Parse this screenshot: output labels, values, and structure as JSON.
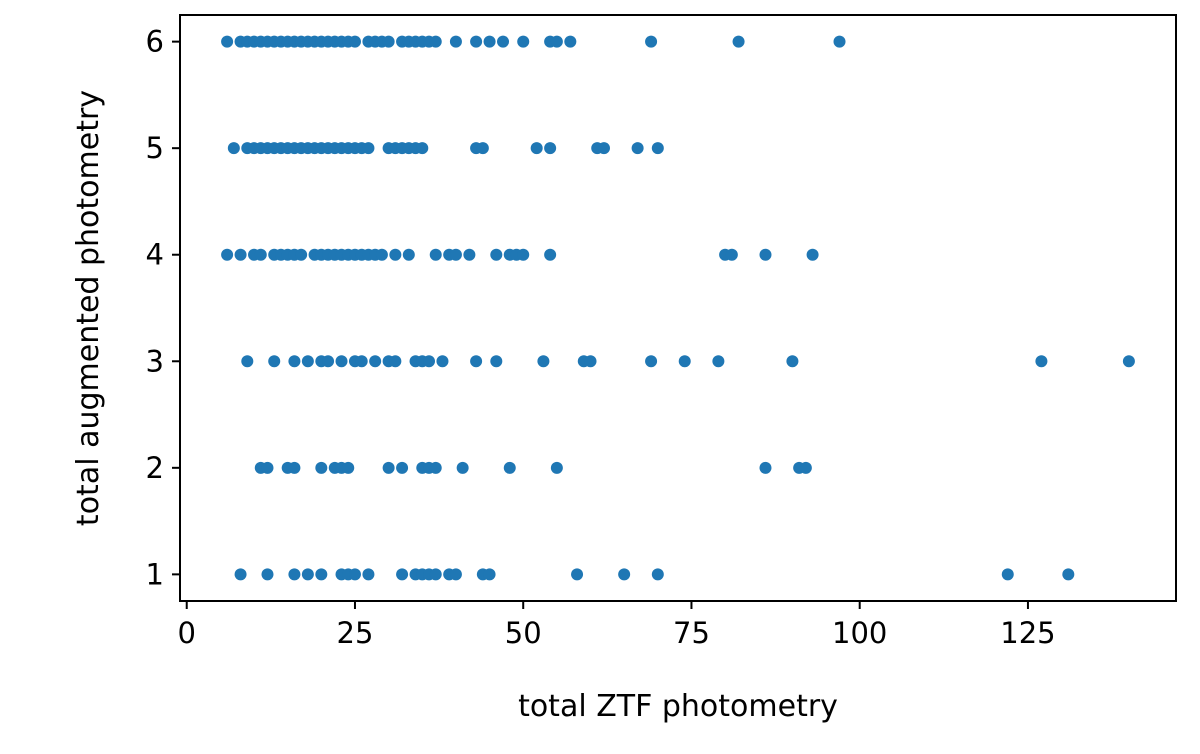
{
  "chart_data": {
    "type": "scatter",
    "title": "",
    "xlabel": "total ZTF photometry",
    "ylabel": "total augmented photometry",
    "xlim": [
      -1,
      147
    ],
    "ylim": [
      0.75,
      6.25
    ],
    "xticks": [
      0,
      25,
      50,
      75,
      100,
      125
    ],
    "yticks": [
      1,
      2,
      3,
      4,
      5,
      6
    ],
    "grid": false,
    "legend": "none",
    "series": [
      {
        "color": "#1f77b4",
        "points": [
          [
            6,
            6
          ],
          [
            8,
            6
          ],
          [
            9,
            6
          ],
          [
            10,
            6
          ],
          [
            11,
            6
          ],
          [
            12,
            6
          ],
          [
            13,
            6
          ],
          [
            14,
            6
          ],
          [
            15,
            6
          ],
          [
            16,
            6
          ],
          [
            17,
            6
          ],
          [
            18,
            6
          ],
          [
            19,
            6
          ],
          [
            20,
            6
          ],
          [
            21,
            6
          ],
          [
            22,
            6
          ],
          [
            23,
            6
          ],
          [
            24,
            6
          ],
          [
            25,
            6
          ],
          [
            27,
            6
          ],
          [
            28,
            6
          ],
          [
            29,
            6
          ],
          [
            30,
            6
          ],
          [
            32,
            6
          ],
          [
            33,
            6
          ],
          [
            34,
            6
          ],
          [
            35,
            6
          ],
          [
            36,
            6
          ],
          [
            37,
            6
          ],
          [
            40,
            6
          ],
          [
            43,
            6
          ],
          [
            45,
            6
          ],
          [
            47,
            6
          ],
          [
            50,
            6
          ],
          [
            54,
            6
          ],
          [
            55,
            6
          ],
          [
            57,
            6
          ],
          [
            69,
            6
          ],
          [
            82,
            6
          ],
          [
            97,
            6
          ],
          [
            7,
            5
          ],
          [
            9,
            5
          ],
          [
            10,
            5
          ],
          [
            11,
            5
          ],
          [
            12,
            5
          ],
          [
            13,
            5
          ],
          [
            14,
            5
          ],
          [
            15,
            5
          ],
          [
            16,
            5
          ],
          [
            17,
            5
          ],
          [
            18,
            5
          ],
          [
            19,
            5
          ],
          [
            20,
            5
          ],
          [
            21,
            5
          ],
          [
            22,
            5
          ],
          [
            23,
            5
          ],
          [
            24,
            5
          ],
          [
            25,
            5
          ],
          [
            26,
            5
          ],
          [
            27,
            5
          ],
          [
            30,
            5
          ],
          [
            31,
            5
          ],
          [
            32,
            5
          ],
          [
            33,
            5
          ],
          [
            34,
            5
          ],
          [
            35,
            5
          ],
          [
            43,
            5
          ],
          [
            44,
            5
          ],
          [
            52,
            5
          ],
          [
            54,
            5
          ],
          [
            61,
            5
          ],
          [
            62,
            5
          ],
          [
            67,
            5
          ],
          [
            70,
            5
          ],
          [
            6,
            4
          ],
          [
            8,
            4
          ],
          [
            10,
            4
          ],
          [
            11,
            4
          ],
          [
            13,
            4
          ],
          [
            14,
            4
          ],
          [
            15,
            4
          ],
          [
            16,
            4
          ],
          [
            17,
            4
          ],
          [
            19,
            4
          ],
          [
            20,
            4
          ],
          [
            21,
            4
          ],
          [
            22,
            4
          ],
          [
            23,
            4
          ],
          [
            24,
            4
          ],
          [
            25,
            4
          ],
          [
            26,
            4
          ],
          [
            27,
            4
          ],
          [
            28,
            4
          ],
          [
            29,
            4
          ],
          [
            31,
            4
          ],
          [
            33,
            4
          ],
          [
            37,
            4
          ],
          [
            39,
            4
          ],
          [
            40,
            4
          ],
          [
            42,
            4
          ],
          [
            46,
            4
          ],
          [
            48,
            4
          ],
          [
            49,
            4
          ],
          [
            50,
            4
          ],
          [
            54,
            4
          ],
          [
            80,
            4
          ],
          [
            81,
            4
          ],
          [
            86,
            4
          ],
          [
            93,
            4
          ],
          [
            9,
            3
          ],
          [
            13,
            3
          ],
          [
            16,
            3
          ],
          [
            18,
            3
          ],
          [
            20,
            3
          ],
          [
            21,
            3
          ],
          [
            23,
            3
          ],
          [
            25,
            3
          ],
          [
            26,
            3
          ],
          [
            28,
            3
          ],
          [
            30,
            3
          ],
          [
            31,
            3
          ],
          [
            34,
            3
          ],
          [
            35,
            3
          ],
          [
            36,
            3
          ],
          [
            38,
            3
          ],
          [
            43,
            3
          ],
          [
            46,
            3
          ],
          [
            53,
            3
          ],
          [
            59,
            3
          ],
          [
            60,
            3
          ],
          [
            69,
            3
          ],
          [
            74,
            3
          ],
          [
            79,
            3
          ],
          [
            90,
            3
          ],
          [
            127,
            3
          ],
          [
            140,
            3
          ],
          [
            11,
            2
          ],
          [
            12,
            2
          ],
          [
            15,
            2
          ],
          [
            16,
            2
          ],
          [
            20,
            2
          ],
          [
            22,
            2
          ],
          [
            23,
            2
          ],
          [
            24,
            2
          ],
          [
            30,
            2
          ],
          [
            32,
            2
          ],
          [
            35,
            2
          ],
          [
            36,
            2
          ],
          [
            37,
            2
          ],
          [
            41,
            2
          ],
          [
            48,
            2
          ],
          [
            55,
            2
          ],
          [
            86,
            2
          ],
          [
            91,
            2
          ],
          [
            92,
            2
          ],
          [
            8,
            1
          ],
          [
            12,
            1
          ],
          [
            16,
            1
          ],
          [
            18,
            1
          ],
          [
            20,
            1
          ],
          [
            23,
            1
          ],
          [
            24,
            1
          ],
          [
            25,
            1
          ],
          [
            27,
            1
          ],
          [
            32,
            1
          ],
          [
            34,
            1
          ],
          [
            35,
            1
          ],
          [
            36,
            1
          ],
          [
            37,
            1
          ],
          [
            39,
            1
          ],
          [
            40,
            1
          ],
          [
            44,
            1
          ],
          [
            45,
            1
          ],
          [
            58,
            1
          ],
          [
            65,
            1
          ],
          [
            70,
            1
          ],
          [
            122,
            1
          ],
          [
            131,
            1
          ]
        ]
      }
    ]
  }
}
